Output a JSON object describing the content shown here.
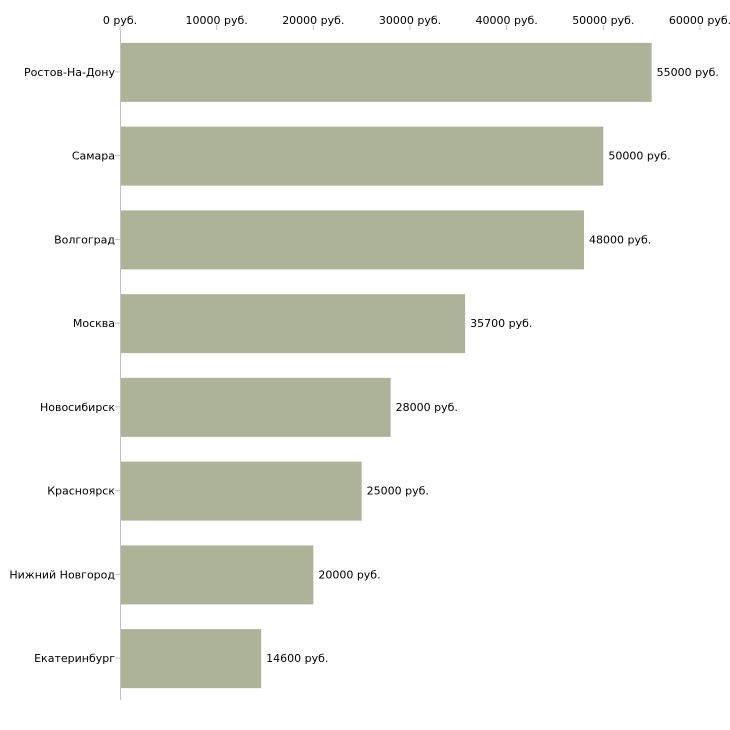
{
  "chart_data": {
    "type": "bar",
    "orientation": "horizontal",
    "title": "",
    "xlabel": "",
    "ylabel": "",
    "xlim": [
      0,
      60000
    ],
    "ticks": [
      0,
      10000,
      20000,
      30000,
      40000,
      50000,
      60000
    ],
    "tick_labels": [
      "0 руб.",
      "10000 руб.",
      "20000 руб.",
      "30000 руб.",
      "40000 руб.",
      "50000 руб.",
      "60000 руб."
    ],
    "grid": false,
    "categories": [
      "Ростов-На-Дону",
      "Самара",
      "Волгоград",
      "Москва",
      "Новосибирск",
      "Красноярск",
      "Нижний Новгород",
      "Екатеринбург"
    ],
    "values": [
      55000,
      50000,
      48000,
      35700,
      28000,
      25000,
      20000,
      14600
    ],
    "value_labels": [
      "55000 руб.",
      "50000 руб.",
      "48000 руб.",
      "35700 руб.",
      "28000 руб.",
      "25000 руб.",
      "20000 руб.",
      "14600 руб."
    ],
    "colors": {
      "bar": "#adb398",
      "axis": "#c0c0c0",
      "text": "#000000"
    }
  }
}
